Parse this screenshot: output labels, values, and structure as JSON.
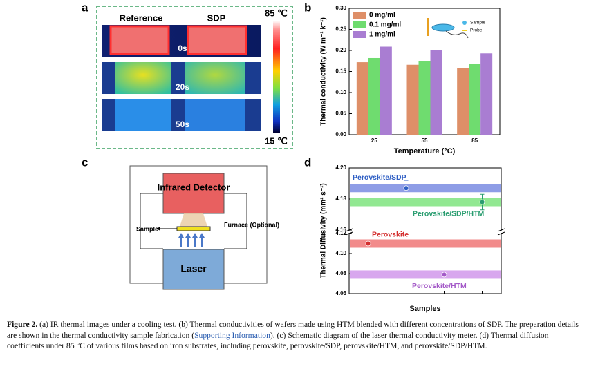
{
  "panel_labels": [
    "a",
    "b",
    "c",
    "d"
  ],
  "figure_a": {
    "columns": [
      "Reference",
      "SDP"
    ],
    "times": [
      "0s",
      "20s",
      "50s"
    ],
    "scale_max": "85 ℃",
    "scale_min": "15 ℃"
  },
  "diagram_c": {
    "detector": "Infrared Detector",
    "sample": "Sample",
    "furnace": "Furnace (Optional)",
    "laser": "Laser"
  },
  "chart_data": [
    {
      "type": "bar",
      "xlabel": "Temperature (°C)",
      "ylabel": "Thermal conductivity (W m⁻¹ k⁻¹)",
      "categories": [
        "25",
        "55",
        "85"
      ],
      "series": [
        {
          "name": "0 mg/ml",
          "color": "#de8f68",
          "values": [
            0.172,
            0.166,
            0.159
          ]
        },
        {
          "name": "0.1 mg/ml",
          "color": "#6fdc6f",
          "values": [
            0.182,
            0.175,
            0.168
          ]
        },
        {
          "name": "1 mg/ml",
          "color": "#a97dd2",
          "values": [
            0.209,
            0.2,
            0.193
          ]
        }
      ],
      "ylim": [
        0,
        0.3
      ],
      "yticks": [
        {
          "value": 0,
          "label": "0.00"
        },
        {
          "value": 0.05,
          "label": "0.05"
        },
        {
          "value": 0.1,
          "label": "0.10"
        },
        {
          "value": 0.15,
          "label": "0.15"
        },
        {
          "value": 0.2,
          "label": "0.20"
        },
        {
          "value": 0.25,
          "label": "0.25"
        },
        {
          "value": 0.3,
          "label": "0.30"
        }
      ],
      "legend": "upper left",
      "inset_labels": [
        "Sample",
        "Probe"
      ]
    },
    {
      "type": "scatter",
      "xlabel": "Samples",
      "ylabel": "Thermal Diffusivity (mm² s⁻¹)",
      "categories": [
        null,
        null,
        null,
        null
      ],
      "series": [
        {
          "name": "Perovskite/SDP",
          "color": "#2f5fc4",
          "band_color": "#8e9de6",
          "values": [
            null,
            4.187,
            null,
            null
          ],
          "errors": [
            null,
            0.005,
            null,
            null
          ]
        },
        {
          "name": "Perovskite/SDP/HTM",
          "color": "#2a9d70",
          "band_color": "#92e892",
          "values": [
            null,
            null,
            null,
            4.178
          ],
          "errors": [
            null,
            null,
            null,
            0.005
          ]
        },
        {
          "name": "Perovskite",
          "color": "#d42f2f",
          "band_color": "#f28b8b",
          "values": [
            4.11,
            null,
            null,
            null
          ],
          "errors": [
            null,
            null,
            null,
            null
          ]
        },
        {
          "name": "Perovskite/HTM",
          "color": "#a45ac8",
          "band_color": "#d8a7ee",
          "values": [
            null,
            null,
            4.079,
            null
          ],
          "errors": [
            null,
            null,
            null,
            null
          ]
        }
      ],
      "ylim": [
        4.06,
        4.2
      ],
      "axis_break": [
        4.12,
        4.16
      ],
      "yticks": [
        4.06,
        4.08,
        {
          "value": 4.1,
          "label": "4.10"
        },
        4.12,
        4.16,
        4.18,
        {
          "value": 4.2,
          "label": "4.20"
        }
      ]
    }
  ],
  "caption": {
    "label": "Figure 2.",
    "text_1": " (a) IR thermal images under a cooling test. (b) Thermal conductivities of wafers made using HTM blended with different concentrations of SDP. The preparation details are shown in the thermal conductivity sample fabrication (",
    "link": "Supporting Information",
    "text_2": "). (c) Schematic diagram of the laser thermal conductivity meter. (d) Thermal diffusion coefficients under 85 °C of various films based on iron substrates, including perovskite, perovskite/SDP, perovskite/HTM, and perovskite/SDP/HTM."
  }
}
